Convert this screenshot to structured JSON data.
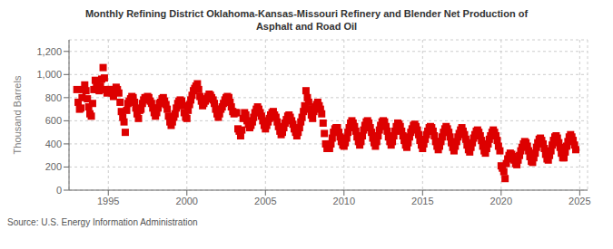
{
  "chart_data": {
    "type": "scatter",
    "title": "Monthly Refining District Oklahoma-Kansas-Missouri Refinery and Blender Net Production of\nAsphalt and Road Oil",
    "ylabel": "Thousand Barrels",
    "annotations": [
      "Source: U.S. Energy Information Administration"
    ],
    "color": "#dd0000",
    "marker": "square",
    "grid": true,
    "xlim": [
      1992.5,
      2025.5
    ],
    "ylim": [
      0,
      1300
    ],
    "xticks": [
      1995,
      2000,
      2005,
      2010,
      2015,
      2020,
      2025
    ],
    "yticks": [
      0,
      200,
      400,
      600,
      800,
      {
        "value": 1000,
        "label": "1,000"
      },
      {
        "value": 1200,
        "label": "1,200"
      }
    ],
    "x": [
      1993.0,
      1993.08,
      1993.17,
      1993.25,
      1993.33,
      1993.42,
      1993.5,
      1993.58,
      1993.67,
      1993.75,
      1993.83,
      1993.92,
      1994.0,
      1994.08,
      1994.17,
      1994.25,
      1994.33,
      1994.42,
      1994.5,
      1994.58,
      1994.67,
      1994.75,
      1994.83,
      1994.92,
      1995.0,
      1995.08,
      1995.17,
      1995.25,
      1995.33,
      1995.42,
      1995.5,
      1995.58,
      1995.67,
      1995.75,
      1995.83,
      1995.92,
      1996.0,
      1996.08,
      1996.17,
      1996.25,
      1996.33,
      1996.42,
      1996.5,
      1996.58,
      1996.67,
      1996.75,
      1996.83,
      1996.92,
      1997.0,
      1997.08,
      1997.17,
      1997.25,
      1997.33,
      1997.42,
      1997.5,
      1997.58,
      1997.67,
      1997.75,
      1997.83,
      1997.92,
      1998.0,
      1998.08,
      1998.17,
      1998.25,
      1998.33,
      1998.42,
      1998.5,
      1998.58,
      1998.67,
      1998.75,
      1998.83,
      1998.92,
      1999.0,
      1999.08,
      1999.17,
      1999.25,
      1999.33,
      1999.42,
      1999.5,
      1999.58,
      1999.67,
      1999.75,
      1999.83,
      1999.92,
      2000.0,
      2000.08,
      2000.17,
      2000.25,
      2000.33,
      2000.42,
      2000.5,
      2000.58,
      2000.67,
      2000.75,
      2000.83,
      2000.92,
      2001.0,
      2001.08,
      2001.17,
      2001.25,
      2001.33,
      2001.42,
      2001.5,
      2001.58,
      2001.67,
      2001.75,
      2001.83,
      2001.92,
      2002.0,
      2002.08,
      2002.17,
      2002.25,
      2002.33,
      2002.42,
      2002.5,
      2002.58,
      2002.67,
      2002.75,
      2002.83,
      2002.92,
      2003.0,
      2003.08,
      2003.17,
      2003.25,
      2003.33,
      2003.42,
      2003.5,
      2003.58,
      2003.67,
      2003.75,
      2003.83,
      2003.92,
      2004.0,
      2004.08,
      2004.17,
      2004.25,
      2004.33,
      2004.42,
      2004.5,
      2004.58,
      2004.67,
      2004.75,
      2004.83,
      2004.92,
      2005.0,
      2005.08,
      2005.17,
      2005.25,
      2005.33,
      2005.42,
      2005.5,
      2005.58,
      2005.67,
      2005.75,
      2005.83,
      2005.92,
      2006.0,
      2006.08,
      2006.17,
      2006.25,
      2006.33,
      2006.42,
      2006.5,
      2006.58,
      2006.67,
      2006.75,
      2006.83,
      2006.92,
      2007.0,
      2007.08,
      2007.17,
      2007.25,
      2007.33,
      2007.42,
      2007.5,
      2007.58,
      2007.67,
      2007.75,
      2007.83,
      2007.92,
      2008.0,
      2008.08,
      2008.17,
      2008.25,
      2008.33,
      2008.42,
      2008.5,
      2008.58,
      2008.67,
      2008.75,
      2008.83,
      2008.92,
      2009.0,
      2009.08,
      2009.17,
      2009.25,
      2009.33,
      2009.42,
      2009.5,
      2009.58,
      2009.67,
      2009.75,
      2009.83,
      2009.92,
      2010.0,
      2010.08,
      2010.17,
      2010.25,
      2010.33,
      2010.42,
      2010.5,
      2010.58,
      2010.67,
      2010.75,
      2010.83,
      2010.92,
      2011.0,
      2011.08,
      2011.17,
      2011.25,
      2011.33,
      2011.42,
      2011.5,
      2011.58,
      2011.67,
      2011.75,
      2011.83,
      2011.92,
      2012.0,
      2012.08,
      2012.17,
      2012.25,
      2012.33,
      2012.42,
      2012.5,
      2012.58,
      2012.67,
      2012.75,
      2012.83,
      2012.92,
      2013.0,
      2013.08,
      2013.17,
      2013.25,
      2013.33,
      2013.42,
      2013.5,
      2013.58,
      2013.67,
      2013.75,
      2013.83,
      2013.92,
      2014.0,
      2014.08,
      2014.17,
      2014.25,
      2014.33,
      2014.42,
      2014.5,
      2014.58,
      2014.67,
      2014.75,
      2014.83,
      2014.92,
      2015.0,
      2015.08,
      2015.17,
      2015.25,
      2015.33,
      2015.42,
      2015.5,
      2015.58,
      2015.67,
      2015.75,
      2015.83,
      2015.92,
      2016.0,
      2016.08,
      2016.17,
      2016.25,
      2016.33,
      2016.42,
      2016.5,
      2016.58,
      2016.67,
      2016.75,
      2016.83,
      2016.92,
      2017.0,
      2017.08,
      2017.17,
      2017.25,
      2017.33,
      2017.42,
      2017.5,
      2017.58,
      2017.67,
      2017.75,
      2017.83,
      2017.92,
      2018.0,
      2018.08,
      2018.17,
      2018.25,
      2018.33,
      2018.42,
      2018.5,
      2018.58,
      2018.67,
      2018.75,
      2018.83,
      2018.92,
      2019.0,
      2019.08,
      2019.17,
      2019.25,
      2019.33,
      2019.42,
      2019.5,
      2019.58,
      2019.67,
      2019.75,
      2019.83,
      2019.92,
      2020.0,
      2020.08,
      2020.17,
      2020.25,
      2020.33,
      2020.42,
      2020.5,
      2020.58,
      2020.67,
      2020.75,
      2020.83,
      2020.92,
      2021.0,
      2021.08,
      2021.17,
      2021.25,
      2021.33,
      2021.42,
      2021.5,
      2021.58,
      2021.67,
      2021.75,
      2021.83,
      2021.92,
      2022.0,
      2022.08,
      2022.17,
      2022.25,
      2022.33,
      2022.42,
      2022.5,
      2022.58,
      2022.67,
      2022.75,
      2022.83,
      2022.92,
      2023.0,
      2023.08,
      2023.17,
      2023.25,
      2023.33,
      2023.42,
      2023.5,
      2023.58,
      2023.67,
      2023.75,
      2023.83,
      2023.92,
      2024.0,
      2024.08,
      2024.17,
      2024.25,
      2024.33,
      2024.42,
      2024.5,
      2024.58,
      2024.67,
      2024.75
    ],
    "values": [
      870,
      760,
      700,
      710,
      800,
      870,
      910,
      860,
      790,
      720,
      660,
      640,
      750,
      870,
      950,
      930,
      870,
      860,
      900,
      960,
      1060,
      970,
      870,
      840,
      860,
      870,
      870,
      840,
      810,
      860,
      890,
      870,
      840,
      760,
      680,
      630,
      590,
      500,
      690,
      750,
      770,
      790,
      810,
      800,
      760,
      710,
      660,
      620,
      690,
      700,
      750,
      780,
      800,
      800,
      810,
      800,
      770,
      750,
      710,
      670,
      640,
      670,
      710,
      750,
      760,
      790,
      800,
      770,
      740,
      700,
      640,
      590,
      560,
      590,
      630,
      660,
      710,
      750,
      770,
      780,
      770,
      730,
      670,
      630,
      620,
      690,
      740,
      780,
      820,
      860,
      880,
      900,
      920,
      870,
      810,
      770,
      730,
      750,
      770,
      790,
      810,
      830,
      820,
      800,
      780,
      750,
      700,
      660,
      630,
      660,
      700,
      720,
      750,
      780,
      800,
      810,
      800,
      760,
      720,
      680,
      660,
      670,
      670,
      530,
      510,
      470,
      520,
      620,
      670,
      650,
      600,
      570,
      540,
      560,
      590,
      630,
      670,
      700,
      720,
      700,
      670,
      640,
      600,
      560,
      530,
      560,
      590,
      620,
      650,
      670,
      680,
      650,
      630,
      590,
      550,
      510,
      480,
      500,
      540,
      580,
      610,
      640,
      650,
      630,
      600,
      570,
      530,
      500,
      470,
      500,
      540,
      590,
      630,
      680,
      730,
      860,
      800,
      760,
      700,
      650,
      620,
      680,
      720,
      740,
      760,
      730,
      700,
      660,
      580,
      490,
      400,
      360,
      370,
      360,
      400,
      450,
      500,
      530,
      540,
      540,
      500,
      460,
      420,
      390,
      380,
      410,
      450,
      500,
      540,
      580,
      600,
      580,
      550,
      510,
      460,
      420,
      390,
      420,
      470,
      520,
      560,
      590,
      600,
      580,
      540,
      500,
      450,
      410,
      380,
      420,
      470,
      520,
      560,
      590,
      600,
      590,
      550,
      510,
      460,
      420,
      390,
      420,
      470,
      510,
      550,
      580,
      570,
      550,
      510,
      470,
      430,
      390,
      370,
      410,
      460,
      500,
      530,
      560,
      570,
      550,
      520,
      480,
      430,
      390,
      360,
      400,
      440,
      480,
      510,
      540,
      550,
      540,
      510,
      470,
      420,
      380,
      350,
      380,
      420,
      460,
      500,
      530,
      550,
      530,
      500,
      460,
      410,
      370,
      340,
      380,
      420,
      460,
      490,
      520,
      540,
      510,
      480,
      440,
      390,
      350,
      330,
      370,
      410,
      450,
      480,
      510,
      520,
      500,
      470,
      430,
      380,
      340,
      320,
      360,
      400,
      440,
      470,
      500,
      520,
      500,
      470,
      430,
      380,
      340,
      210,
      190,
      160,
      100,
      230,
      270,
      300,
      320,
      310,
      290,
      260,
      230,
      220,
      260,
      300,
      340,
      370,
      400,
      420,
      410,
      380,
      340,
      290,
      250,
      240,
      280,
      320,
      370,
      410,
      440,
      450,
      430,
      400,
      360,
      310,
      270,
      260,
      300,
      340,
      390,
      430,
      460,
      470,
      450,
      410,
      370,
      320,
      280,
      280,
      330,
      380,
      420,
      460,
      480,
      460,
      430,
      390,
      350
    ]
  }
}
